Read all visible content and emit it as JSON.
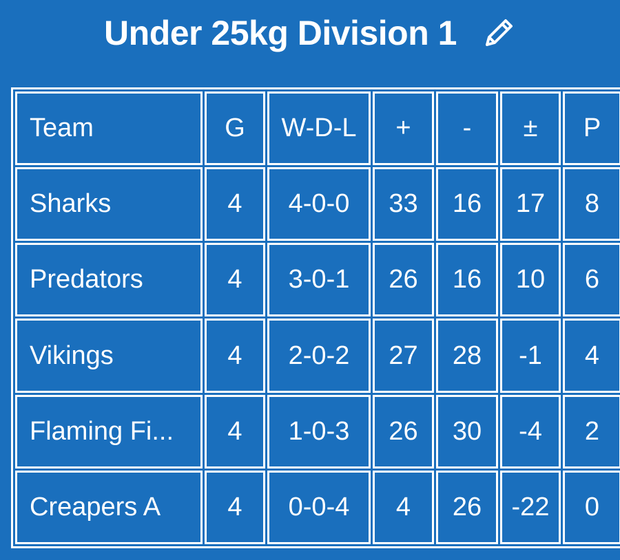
{
  "header": {
    "title": "Under 25kg Division 1"
  },
  "table": {
    "columns": [
      "Team",
      "G",
      "W-D-L",
      "+",
      "-",
      "±",
      "P"
    ],
    "rows": [
      [
        "Sharks",
        4,
        "4-0-0",
        33,
        16,
        17,
        8
      ],
      [
        "Predators",
        4,
        "3-0-1",
        26,
        16,
        10,
        6
      ],
      [
        "Vikings",
        4,
        "2-0-2",
        27,
        28,
        -1,
        4
      ],
      [
        "Flaming Fi...",
        4,
        "1-0-3",
        26,
        30,
        -4,
        2
      ],
      [
        "Creapers A",
        4,
        "0-0-4",
        4,
        26,
        -22,
        0
      ]
    ]
  }
}
